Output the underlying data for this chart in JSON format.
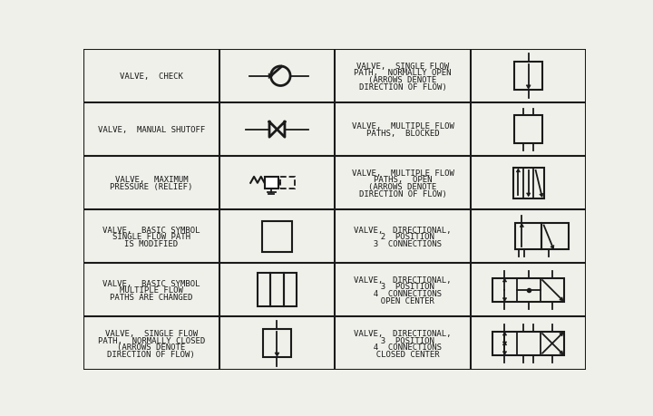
{
  "bg_color": "#f0f0eb",
  "line_color": "#1a1a1a",
  "text_color": "#1a1a1a",
  "left_labels": [
    "VALVE,  CHECK",
    "VALVE,  MANUAL SHUTOFF",
    "VALVE,  MAXIMUM\nPRESSURE (RELIEF)",
    "VALVE,  BASIC SYMBOL\nSINGLE FLOW PATH\nIS MODIFIED",
    "VALVE,  BASIC SYMBOL\nMULTIPLE FLOW\nPATHS ARE CHANGED",
    "VALVE,  SINGLE FLOW\nPATH,  NORMALLY CLOSED\n(ARROWS DENOTE\nDIRECTION OF FLOW)"
  ],
  "right_labels": [
    "VALVE,  SINGLE FLOW\nPATH,  NORMALLY OPEN\n(ARROWS DENOTE\nDIRECTION OF FLOW)",
    "VALVE,  MULTIPLE FLOW\nPATHS,  BLOCKED",
    "VALVE,  MULTIPLE FLOW\nPATHS,  OPEN\n(ARROWS DENOTE\nDIRECTION OF FLOW)",
    "VALVE,  DIRECTIONAL,\n  2  POSITION\n  3  CONNECTIONS",
    "VALVE,  DIRECTIONAL,\n  3  POSITION\n  4  CONNECTIONS\n  OPEN CENTER",
    "VALVE,  DIRECTIONAL,\n  3  POSITION\n  4  CONNECTIONS\n  CLOSED CENTER"
  ]
}
